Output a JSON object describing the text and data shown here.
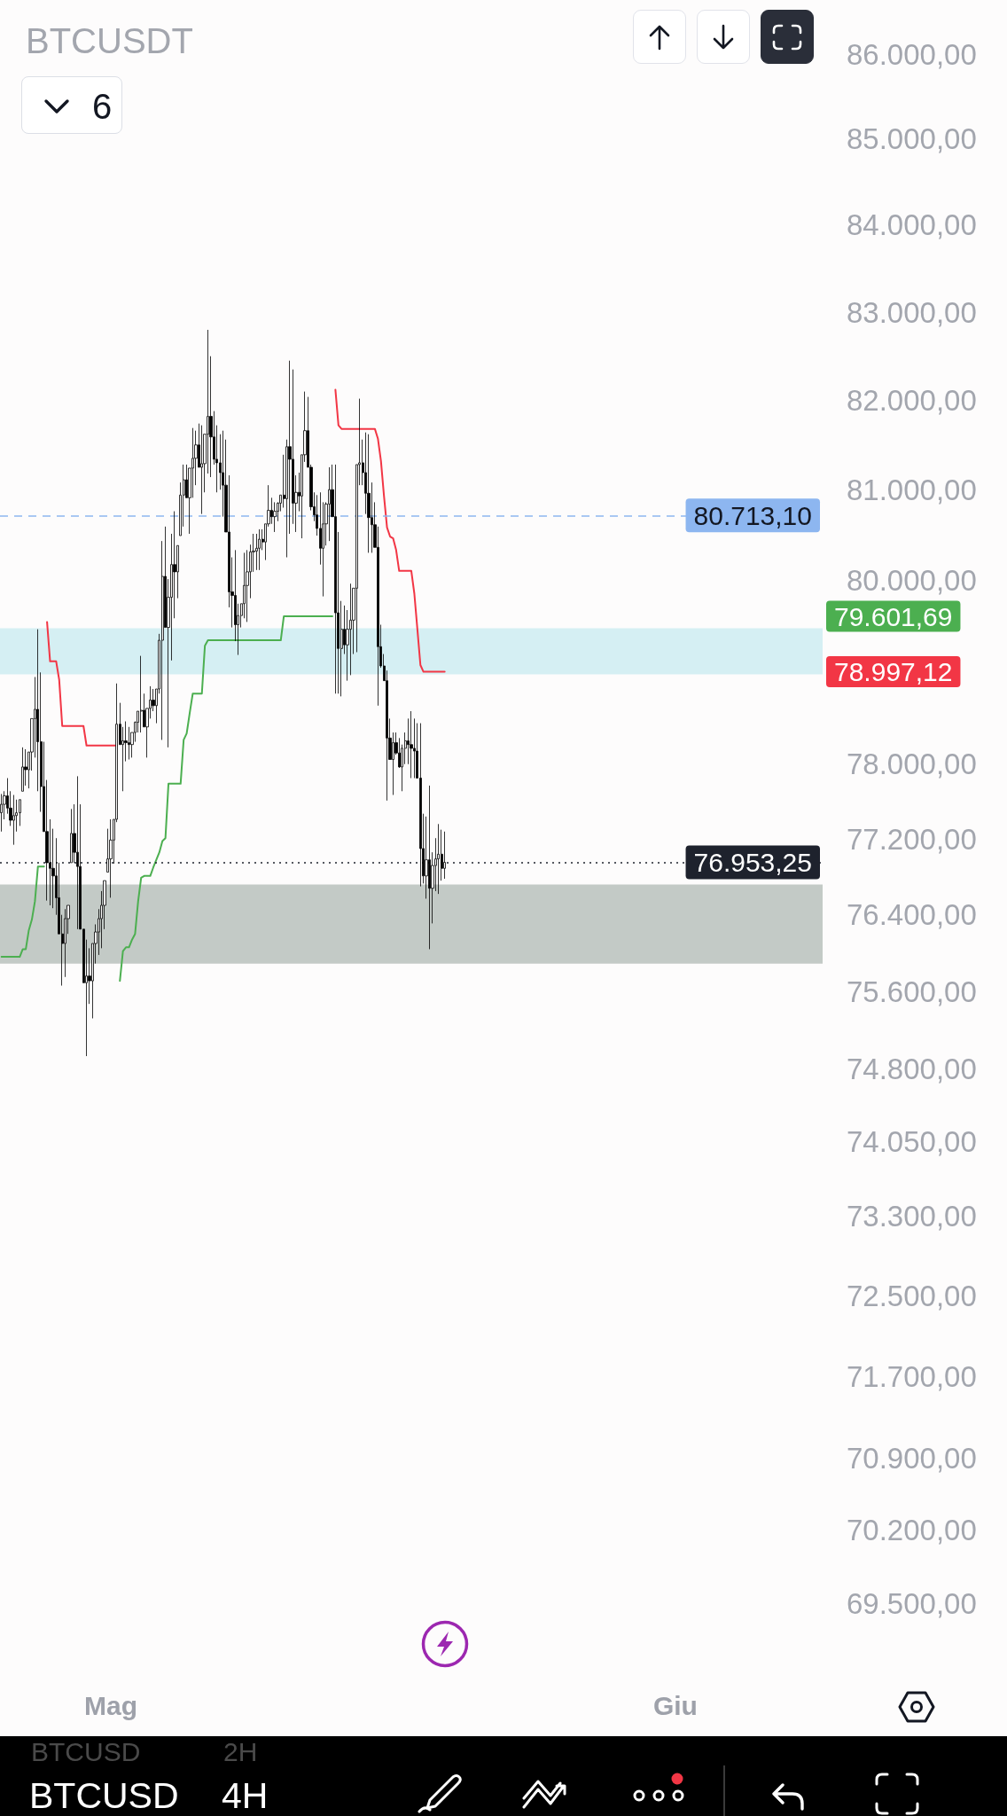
{
  "chart_data": {
    "type": "candlestick",
    "title": "BTCUSDT",
    "color": "#000000",
    "log": true,
    "marker": "none",
    "categories": [
      null,
      null,
      null,
      null,
      null,
      null,
      null,
      null,
      null,
      null,
      null,
      null,
      null,
      null,
      null,
      null,
      null,
      null,
      null,
      null,
      null,
      null,
      null,
      null,
      null,
      null,
      null,
      null,
      null,
      null,
      null,
      null,
      null,
      null,
      null,
      null,
      "Mag",
      null,
      null,
      null,
      null,
      null,
      null,
      null,
      null,
      null,
      null,
      null,
      null,
      null,
      null,
      null,
      null,
      null,
      null,
      null,
      null,
      null,
      null,
      null,
      null,
      null,
      null,
      null,
      null,
      null,
      null,
      null,
      null,
      null,
      null,
      null,
      null,
      null,
      null,
      null,
      null,
      null,
      null,
      null,
      null,
      null,
      null,
      null,
      null,
      null,
      null,
      null,
      null,
      null,
      null,
      null,
      null,
      null,
      null,
      null,
      null,
      null,
      null,
      null,
      null,
      null,
      null,
      null,
      null,
      null,
      null,
      null,
      null,
      null,
      null,
      null,
      null,
      null,
      null,
      null,
      null,
      null,
      null,
      null,
      null,
      null,
      null,
      null,
      null,
      null,
      null,
      null,
      null,
      null,
      null,
      null,
      null,
      null,
      null,
      null,
      null,
      null,
      null,
      null,
      null,
      null,
      null,
      null,
      null,
      null,
      null,
      null,
      null,
      null,
      null,
      null,
      null,
      null,
      null,
      null,
      null,
      null,
      null,
      null,
      null,
      null,
      null,
      null,
      null,
      null,
      null,
      null,
      null,
      null,
      null,
      null,
      null,
      null,
      null,
      null,
      null,
      null,
      null,
      null,
      null,
      null,
      null,
      null,
      null,
      null,
      null,
      null,
      null,
      null,
      null,
      null,
      null,
      null,
      null,
      null,
      null,
      null,
      null,
      null,
      null,
      null,
      null,
      null,
      null,
      null,
      null,
      null,
      null,
      null,
      null,
      null,
      null,
      null,
      null,
      null,
      null,
      null,
      null,
      null,
      null,
      null,
      "Giu",
      null,
      null,
      null,
      null,
      null,
      null,
      null,
      null,
      null,
      null,
      null,
      null,
      null,
      null,
      null,
      null,
      null,
      null,
      null,
      null,
      null,
      null,
      null,
      null,
      null,
      null,
      null,
      null,
      null,
      null,
      null,
      null,
      null,
      null,
      null,
      null,
      null,
      null,
      null,
      null,
      null,
      null,
      null,
      null,
      null,
      null,
      null,
      null
    ],
    "ohlc": [
      [
        77480,
        77680,
        77280,
        77570
      ],
      [
        77570,
        77710,
        77410,
        77660
      ],
      [
        77660,
        77850,
        77470,
        77530
      ],
      [
        77530,
        77710,
        77340,
        77400
      ],
      [
        77400,
        77670,
        77140,
        77450
      ],
      [
        77450,
        77620,
        77280,
        77480
      ],
      [
        77480,
        77620,
        77340,
        77620
      ],
      [
        77710,
        78180,
        77710,
        77970
      ],
      [
        77970,
        78160,
        77770,
        77940
      ],
      [
        77940,
        78130,
        77740,
        78130
      ],
      [
        78130,
        78490,
        77930,
        78490
      ],
      [
        78490,
        78940,
        78070,
        78590
      ],
      [
        78590,
        79460,
        77710,
        78240
      ],
      [
        78240,
        78990,
        77490,
        77760
      ],
      [
        77760,
        78240,
        77280,
        77280
      ],
      [
        77280,
        77830,
        76550,
        76950
      ],
      [
        76950,
        77410,
        76500,
        76890
      ],
      [
        76890,
        77310,
        76470,
        76810
      ],
      [
        76810,
        77210,
        76400,
        76580
      ],
      [
        76580,
        76950,
        76200,
        76200
      ],
      [
        76200,
        76400,
        75660,
        76100
      ],
      [
        76100,
        76460,
        75750,
        76360
      ],
      [
        76360,
        76500,
        76200,
        76500
      ],
      [
        76950,
        77520,
        76950,
        77260
      ],
      [
        77260,
        77570,
        76950,
        77060
      ],
      [
        77060,
        77870,
        76250,
        76910
      ],
      [
        76910,
        77570,
        76250,
        76250
      ],
      [
        76250,
        76250,
        75690,
        75690
      ],
      [
        75690,
        76140,
        74930,
        75760
      ],
      [
        75760,
        76050,
        75470,
        75710
      ],
      [
        75710,
        76100,
        75320,
        76100
      ],
      [
        76100,
        76300,
        75890,
        76220
      ],
      [
        76220,
        76460,
        75980,
        76360
      ],
      [
        76360,
        76650,
        76050,
        76500
      ],
      [
        76500,
        76760,
        76250,
        76760
      ],
      [
        76850,
        77310,
        76850,
        76990
      ],
      [
        76990,
        77410,
        76580,
        77190
      ],
      [
        77190,
        77410,
        76940,
        77410
      ],
      [
        77410,
        78870,
        77380,
        78430
      ],
      [
        78430,
        78660,
        78210,
        78210
      ],
      [
        78210,
        78400,
        77710,
        78250
      ],
      [
        78250,
        78460,
        78030,
        78230
      ],
      [
        78230,
        78400,
        78050,
        78210
      ],
      [
        78210,
        78340,
        78070,
        78340
      ],
      [
        78340,
        78460,
        78240,
        78450
      ],
      [
        78450,
        78570,
        78340,
        78570
      ],
      [
        78570,
        79170,
        78340,
        78580
      ],
      [
        78580,
        78760,
        78400,
        78400
      ],
      [
        78400,
        78600,
        78070,
        78600
      ],
      [
        78600,
        78840,
        78490,
        78690
      ],
      [
        78690,
        78810,
        78570,
        78630
      ],
      [
        78630,
        78810,
        78440,
        78810
      ],
      [
        78810,
        79410,
        78760,
        79340
      ],
      [
        79340,
        80430,
        78260,
        80040
      ],
      [
        80040,
        80590,
        79480,
        79480
      ],
      [
        79480,
        80010,
        78180,
        79810
      ],
      [
        79810,
        80510,
        79120,
        80170
      ],
      [
        80170,
        80760,
        79580,
        80090
      ],
      [
        80090,
        80380,
        79800,
        80380
      ],
      [
        80490,
        81080,
        80490,
        80940
      ],
      [
        80940,
        81280,
        80590,
        81110
      ],
      [
        81110,
        81280,
        80910,
        80910
      ],
      [
        80910,
        81240,
        80510,
        81240
      ],
      [
        81240,
        81690,
        80910,
        81350
      ],
      [
        81350,
        81660,
        81050,
        81500
      ],
      [
        81500,
        81740,
        81250,
        81250
      ],
      [
        81250,
        81720,
        80730,
        81290
      ],
      [
        81290,
        81620,
        80970,
        81620
      ],
      [
        81620,
        82800,
        81180,
        81820
      ],
      [
        81820,
        82500,
        81140,
        81590
      ],
      [
        81590,
        81880,
        81280,
        81340
      ],
      [
        81340,
        81720,
        80970,
        81300
      ],
      [
        81300,
        81620,
        81000,
        81190
      ],
      [
        81190,
        81660,
        80700,
        81050
      ],
      [
        81050,
        81560,
        80530,
        80530
      ],
      [
        80530,
        81160,
        79700,
        79870
      ],
      [
        79870,
        80250,
        79480,
        79830
      ],
      [
        79830,
        80330,
        79330,
        79510
      ],
      [
        79510,
        79740,
        79180,
        79610
      ],
      [
        79610,
        79740,
        79480,
        79740
      ],
      [
        79740,
        80300,
        79580,
        79940
      ],
      [
        79940,
        80330,
        79540,
        80090
      ],
      [
        80090,
        80390,
        79800,
        80310
      ],
      [
        80310,
        80510,
        80090,
        80320
      ],
      [
        80320,
        80510,
        80110,
        80350
      ],
      [
        80350,
        80560,
        80110,
        80450
      ],
      [
        80450,
        80560,
        80330,
        80420
      ],
      [
        80420,
        80620,
        80220,
        80620
      ],
      [
        80620,
        81050,
        80590,
        80770
      ],
      [
        80770,
        80910,
        80620,
        80700
      ],
      [
        80700,
        80860,
        80530,
        80760
      ],
      [
        80760,
        80860,
        80650,
        80850
      ],
      [
        80850,
        80940,
        80760,
        80940
      ],
      [
        80940,
        81390,
        80800,
        80900
      ],
      [
        80900,
        81560,
        80250,
        81480
      ],
      [
        81480,
        82450,
        80510,
        81340
      ],
      [
        81340,
        82350,
        80620,
        80850
      ],
      [
        80850,
        81160,
        80530,
        80970
      ],
      [
        80970,
        81190,
        80760,
        80930
      ],
      [
        80930,
        81390,
        80460,
        81390
      ],
      [
        81390,
        82100,
        81310,
        81660
      ],
      [
        81660,
        82040,
        81250,
        81250
      ],
      [
        81250,
        81280,
        80770,
        80810
      ],
      [
        80810,
        80970,
        80650,
        80720
      ],
      [
        80720,
        80940,
        80490,
        80570
      ],
      [
        80570,
        80970,
        80170,
        80350
      ],
      [
        80350,
        80860,
        79820,
        80620
      ],
      [
        80620,
        80860,
        80380,
        80840
      ],
      [
        80840,
        81250,
        80430,
        81000
      ],
      [
        81000,
        81280,
        80700,
        80700
      ],
      [
        80700,
        81280,
        78760,
        79640
      ],
      [
        79640,
        80530,
        78760,
        79250
      ],
      [
        79250,
        79770,
        78730,
        79460
      ],
      [
        79460,
        79720,
        79190,
        79290
      ],
      [
        79290,
        79670,
        78900,
        79460
      ],
      [
        79460,
        79960,
        78960,
        79560
      ],
      [
        79560,
        79910,
        79190,
        79910
      ],
      [
        79910,
        81280,
        79210,
        81280
      ],
      [
        81280,
        82020,
        81050,
        81300
      ],
      [
        81300,
        81560,
        81050,
        81190
      ],
      [
        81190,
        81640,
        80730,
        80960
      ],
      [
        80960,
        81620,
        80300,
        80690
      ],
      [
        80690,
        81080,
        80300,
        80610
      ],
      [
        80610,
        80860,
        80360,
        80360
      ],
      [
        80360,
        80590,
        78630,
        79270
      ],
      [
        79270,
        79510,
        79040,
        79060
      ],
      [
        79060,
        79190,
        78900,
        78900
      ],
      [
        78900,
        79010,
        77610,
        78280
      ],
      [
        78280,
        78490,
        78050,
        78050
      ],
      [
        78050,
        78340,
        77670,
        78230
      ],
      [
        78230,
        78340,
        78100,
        78120
      ],
      [
        78120,
        78280,
        77960,
        77970
      ],
      [
        77970,
        78210,
        77710,
        78170
      ],
      [
        78170,
        78340,
        78000,
        78250
      ],
      [
        78250,
        78490,
        78000,
        78210
      ],
      [
        78210,
        78570,
        77850,
        78170
      ],
      [
        78170,
        78490,
        77850,
        78140
      ],
      [
        78140,
        78440,
        77850,
        77850
      ],
      [
        77850,
        78440,
        76700,
        77100
      ],
      [
        77100,
        77470,
        76730,
        76810
      ],
      [
        76810,
        77440,
        76570,
        76980
      ],
      [
        76980,
        77770,
        76040,
        76680
      ],
      [
        76680,
        77060,
        76310,
        76920
      ],
      [
        76920,
        77210,
        76650,
        76990
      ],
      [
        76990,
        77360,
        76620,
        77040
      ],
      [
        77040,
        77300,
        76760,
        76890
      ],
      [
        76890,
        77280,
        76780,
        76953.25
      ],
      null,
      null,
      null,
      null,
      null,
      null,
      null,
      null,
      null,
      null,
      null,
      null,
      null,
      null,
      null,
      null,
      null,
      null,
      null,
      null,
      null,
      null,
      null,
      null,
      null,
      null,
      null,
      null,
      null,
      null,
      null,
      null,
      null,
      null,
      null,
      null,
      null,
      null,
      null,
      null,
      null,
      null,
      null,
      null,
      null,
      null,
      null,
      null,
      null,
      null,
      null,
      null,
      null,
      null,
      null,
      null,
      null,
      null,
      null,
      null,
      null,
      null,
      null,
      null,
      null,
      null,
      null,
      null,
      null,
      null,
      null,
      null,
      null,
      null,
      null,
      null,
      null,
      null,
      null,
      null,
      null,
      null,
      null,
      null,
      null,
      null,
      null,
      null,
      null,
      null,
      null,
      null,
      null,
      null,
      null,
      null,
      null,
      null,
      null,
      null,
      null,
      null,
      null,
      null,
      null,
      null,
      null,
      null,
      null,
      null,
      null,
      null,
      null,
      null,
      null,
      null,
      null,
      null,
      null,
      null,
      null,
      null,
      null,
      null
    ],
    "series": [
      {
        "type": "line",
        "color": "#f23645",
        "values": [
          null,
          null,
          null,
          null,
          null,
          null,
          null,
          null,
          null,
          null,
          null,
          null,
          null,
          null,
          null,
          79540,
          79110,
          79110,
          79110,
          78910,
          78410,
          78410,
          78410,
          78410,
          78410,
          78410,
          78410,
          78410,
          78200,
          78200,
          78200,
          78200,
          78200,
          78200,
          78200,
          78200,
          78200,
          78200,
          78200,
          null,
          null,
          null,
          null,
          null,
          null,
          null,
          null,
          null,
          null,
          null,
          null,
          null,
          null,
          null,
          null,
          null,
          null,
          null,
          null,
          null,
          null,
          null,
          null,
          null,
          null,
          null,
          null,
          null,
          null,
          null,
          null,
          null,
          null,
          null,
          null,
          null,
          null,
          null,
          null,
          null,
          null,
          null,
          null,
          null,
          null,
          null,
          null,
          null,
          null,
          null,
          null,
          null,
          null,
          null,
          null,
          null,
          null,
          null,
          null,
          null,
          null,
          null,
          null,
          null,
          null,
          null,
          null,
          null,
          null,
          null,
          82120,
          81720,
          81680,
          81680,
          81680,
          81680,
          81680,
          81680,
          81680,
          81680,
          81680,
          81680,
          81680,
          81680,
          81570,
          81320,
          80930,
          80580,
          80480,
          80460,
          80330,
          80100,
          80100,
          80100,
          80100,
          80100,
          79850,
          79460,
          79070,
          78997.12,
          78997.12,
          78997.12,
          78997.12,
          78997.12,
          78997.12,
          78997.12,
          78997.12,
          null,
          null,
          null,
          null,
          null,
          null,
          null,
          null,
          null,
          null,
          null,
          null,
          null,
          null,
          null,
          null,
          null,
          null,
          null,
          null,
          null,
          null,
          null,
          null,
          null,
          null,
          null,
          null,
          null,
          null,
          null,
          null,
          null,
          null,
          null,
          null,
          null,
          null,
          null,
          null,
          null,
          null,
          null,
          null,
          null,
          null,
          null,
          null,
          null,
          null,
          null,
          null,
          null,
          null,
          null,
          null,
          null,
          null,
          null,
          null,
          null,
          null,
          null,
          null,
          null,
          null,
          null,
          null,
          null,
          null,
          null,
          null,
          null,
          null,
          null,
          null,
          null,
          null,
          null,
          null,
          null,
          null,
          null,
          null,
          null,
          null,
          null,
          null,
          null,
          null,
          null,
          null,
          null,
          null,
          null,
          null,
          null,
          null,
          null,
          null,
          null,
          null,
          null,
          null,
          null,
          null,
          null,
          null,
          null,
          null,
          null,
          null,
          null,
          null,
          null,
          null,
          null,
          null,
          null,
          null,
          null,
          null,
          null,
          null
        ]
      },
      {
        "type": "line",
        "color": "#4caf50",
        "values": [
          75960,
          75960,
          75960,
          75960,
          75960,
          75960,
          75960,
          76040,
          76040,
          76240,
          76350,
          76540,
          76910,
          76910,
          76910,
          null,
          null,
          null,
          null,
          null,
          null,
          null,
          null,
          null,
          null,
          null,
          null,
          null,
          null,
          null,
          null,
          null,
          null,
          null,
          null,
          null,
          null,
          null,
          null,
          75710,
          76020,
          76060,
          76060,
          76140,
          76200,
          76540,
          76790,
          76810,
          76810,
          76810,
          76900,
          76980,
          77060,
          77180,
          77210,
          77790,
          77790,
          77790,
          77790,
          77790,
          78260,
          78330,
          78550,
          78760,
          78760,
          78760,
          78760,
          79280,
          79340,
          79340,
          79340,
          79340,
          79340,
          79340,
          79340,
          79340,
          79340,
          79340,
          79340,
          79340,
          79340,
          79340,
          79340,
          79340,
          79340,
          79340,
          79340,
          79340,
          79340,
          79340,
          79340,
          79340,
          79340,
          79601.69,
          79601.69,
          79601.69,
          79601.69,
          79601.69,
          79601.69,
          79601.69,
          79601.69,
          79601.69,
          79601.69,
          79601.69,
          79601.69,
          79601.69,
          79601.69,
          79601.69,
          79601.69,
          79601.69,
          null,
          null,
          null,
          null,
          null,
          null,
          null,
          null,
          null,
          null,
          null,
          null,
          null,
          null,
          null,
          null,
          null,
          null,
          null,
          null,
          null,
          null,
          null,
          null,
          null,
          null,
          null,
          null,
          null,
          null,
          null,
          null,
          null,
          null,
          null,
          null,
          null,
          null,
          null,
          null,
          null,
          null,
          null,
          null,
          null,
          null,
          null,
          null,
          null,
          null,
          null,
          null,
          null,
          null,
          null,
          null,
          null,
          null,
          null,
          null,
          null,
          null,
          null,
          null,
          null,
          null,
          null,
          null,
          null,
          null,
          null,
          null,
          null,
          null,
          null,
          null,
          null,
          null,
          null,
          null,
          null,
          null,
          null,
          null,
          null,
          null,
          null,
          null,
          null,
          null,
          null,
          null,
          null,
          null,
          null,
          null,
          null,
          null,
          null,
          null,
          null,
          null,
          null,
          null,
          null,
          null,
          null,
          null,
          null,
          null,
          null,
          null,
          null,
          null,
          null,
          null,
          null,
          null,
          null,
          null,
          null,
          null,
          null,
          null,
          null,
          null,
          null,
          null,
          null,
          null,
          null,
          null,
          null,
          null,
          null,
          null,
          null,
          null,
          null,
          null,
          null,
          null,
          null,
          null,
          null,
          null,
          null,
          null,
          null,
          null,
          null,
          null,
          null,
          null,
          null,
          null,
          null,
          null,
          null,
          null,
          null
        ]
      }
    ],
    "ylim": [
      69500,
      86000
    ],
    "yticks": [
      {
        "value": 86000,
        "label": "86.000,00"
      },
      {
        "value": 85000,
        "label": "85.000,00"
      },
      {
        "value": 84000,
        "label": "84.000,00"
      },
      {
        "value": 83000,
        "label": "83.000,00"
      },
      {
        "value": 82000,
        "label": "82.000,00"
      },
      {
        "value": 81000,
        "label": "81.000,00"
      },
      {
        "value": 80000,
        "label": "80.000,00"
      },
      {
        "value": 78000,
        "label": "78.000,00"
      },
      {
        "value": 77200,
        "label": "77.200,00"
      },
      {
        "value": 76400,
        "label": "76.400,00"
      },
      {
        "value": 75600,
        "label": "75.600,00"
      },
      {
        "value": 74800,
        "label": "74.800,00"
      },
      {
        "value": 74050,
        "label": "74.050,00"
      },
      {
        "value": 73300,
        "label": "73.300,00"
      },
      {
        "value": 72500,
        "label": "72.500,00"
      },
      {
        "value": 71700,
        "label": "71.700,00"
      },
      {
        "value": 70900,
        "label": "70.900,00"
      },
      {
        "value": 70200,
        "label": "70.200,00"
      },
      {
        "value": 69500,
        "label": "69.500,00"
      }
    ],
    "bands": [
      {
        "axis": "y",
        "from": 78970,
        "to": 79470,
        "color": "#d5eff3"
      },
      {
        "axis": "y",
        "from": 75890,
        "to": 76720,
        "color": "#c3cac6"
      }
    ],
    "ref_lines": [
      {
        "axis": "y",
        "value": 80713.1,
        "label": "80.713,10",
        "color": "#8db6f0",
        "line_style": "dashed"
      },
      {
        "axis": "y",
        "value": 76953.25,
        "label": "76.953,25",
        "color": "#1e222d",
        "line_style": "dotted"
      }
    ],
    "annotations": [
      "6",
      "BTCUSD",
      "4H",
      "BTCUSD",
      "2H",
      "78.997,12",
      "79.601,69"
    ]
  }
}
